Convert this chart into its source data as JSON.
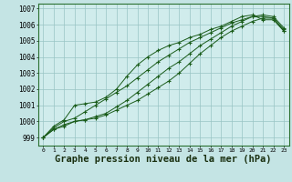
{
  "background_color": "#c4e4e4",
  "plot_bg_color": "#d0ecec",
  "grid_color": "#98c4c4",
  "line_color": "#1a5c1a",
  "xlabel": "Graphe pression niveau de la mer (hPa)",
  "xlabel_fontsize": 7.5,
  "ylabel_min": 999,
  "ylabel_max": 1007,
  "series": [
    [
      999.0,
      999.5,
      999.7,
      1000.0,
      1000.1,
      1000.2,
      1000.4,
      1000.7,
      1001.0,
      1001.3,
      1001.7,
      1002.1,
      1002.5,
      1003.0,
      1003.6,
      1004.2,
      1004.7,
      1005.2,
      1005.6,
      1005.9,
      1006.2,
      1006.4,
      1006.4,
      1005.6
    ],
    [
      999.0,
      999.5,
      999.8,
      1000.0,
      1000.1,
      1000.3,
      1000.5,
      1000.9,
      1001.3,
      1001.8,
      1002.3,
      1002.8,
      1003.3,
      1003.7,
      1004.2,
      1004.7,
      1005.1,
      1005.5,
      1005.9,
      1006.2,
      1006.5,
      1006.6,
      1006.5,
      1005.8
    ],
    [
      999.0,
      999.6,
      1000.0,
      1000.2,
      1000.6,
      1001.0,
      1001.4,
      1001.8,
      1002.2,
      1002.7,
      1003.2,
      1003.7,
      1004.1,
      1004.5,
      1004.9,
      1005.2,
      1005.5,
      1005.8,
      1006.1,
      1006.3,
      1006.5,
      1006.5,
      1006.4,
      1005.7
    ],
    [
      999.0,
      999.7,
      1000.1,
      1001.0,
      1001.1,
      1001.2,
      1001.5,
      1002.0,
      1002.8,
      1003.5,
      1004.0,
      1004.4,
      1004.7,
      1004.9,
      1005.2,
      1005.4,
      1005.7,
      1005.9,
      1006.2,
      1006.5,
      1006.6,
      1006.3,
      1006.3,
      1005.6
    ]
  ]
}
